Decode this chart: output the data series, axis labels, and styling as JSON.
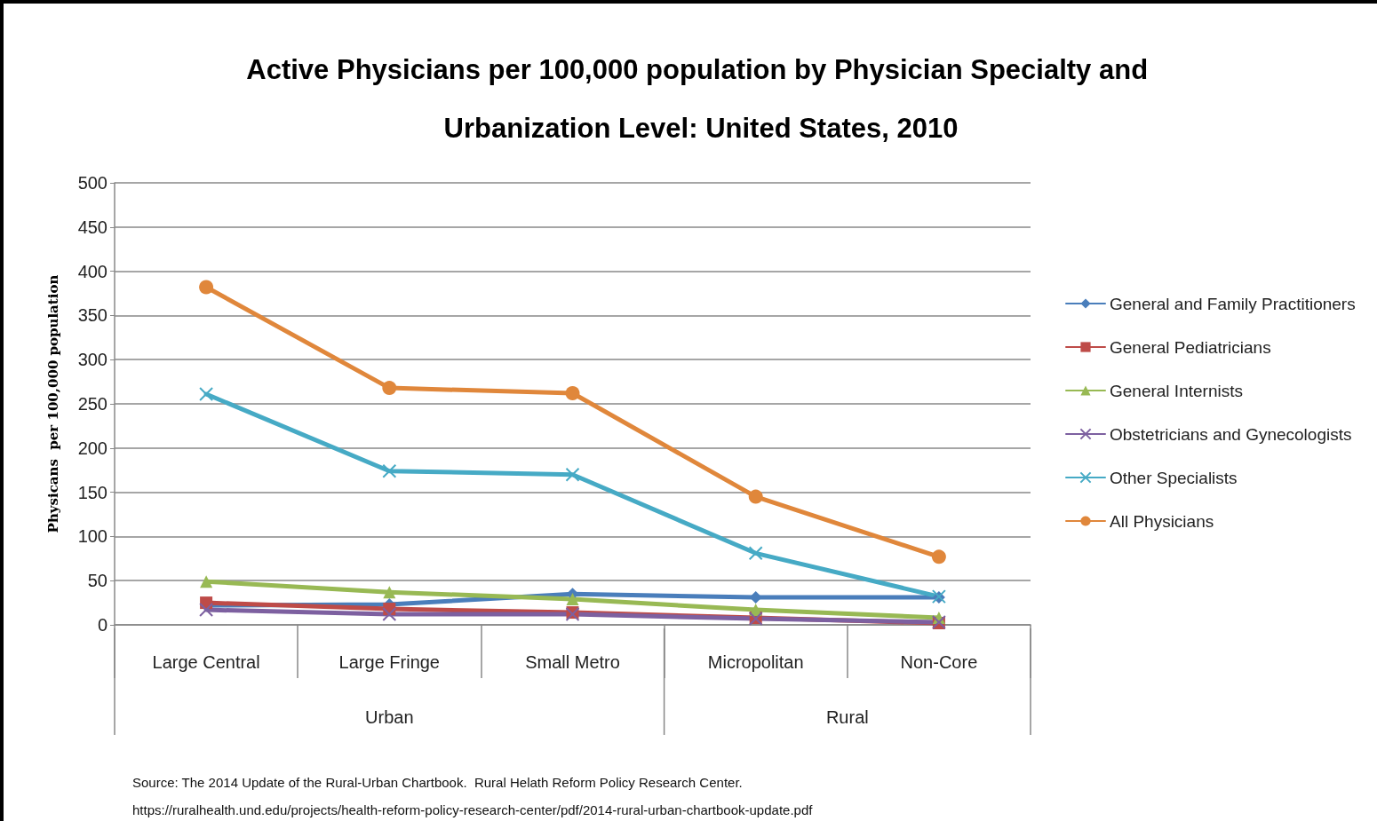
{
  "chart_data": {
    "type": "line",
    "title": "Active Physicians per 100,000 population by Physician Specialty and Urbanization Level: United States, 2010",
    "ylabel": "Physicans  per 100,000 population",
    "categories": [
      "Large Central",
      "Large Fringe",
      "Small Metro",
      "Micropolitan",
      "Non-Core"
    ],
    "series": [
      {
        "name": "General and Family Practitioners",
        "color": "#4a7ebb",
        "marker": "diamond",
        "values": [
          22,
          23,
          35,
          31,
          31
        ]
      },
      {
        "name": "General Pediatricians",
        "color": "#be4b48",
        "marker": "square",
        "values": [
          25,
          18,
          14,
          8,
          2
        ]
      },
      {
        "name": "General Internists",
        "color": "#98b954",
        "marker": "triangle",
        "values": [
          49,
          37,
          29,
          17,
          8
        ]
      },
      {
        "name": "Obstetricians and Gynecologists",
        "color": "#7d60a0",
        "marker": "cross",
        "values": [
          17,
          12,
          12,
          7,
          3
        ]
      },
      {
        "name": "Other Specialists",
        "color": "#46aac5",
        "marker": "cross",
        "values": [
          261,
          174,
          170,
          81,
          32
        ]
      },
      {
        "name": "All Physicians",
        "color": "#e0873b",
        "marker": "circle",
        "values": [
          382,
          268,
          262,
          145,
          77
        ]
      }
    ],
    "ylim": [
      0,
      500
    ],
    "yticks": [
      0,
      50,
      100,
      150,
      200,
      250,
      300,
      350,
      400,
      450,
      500
    ],
    "grid": "y",
    "legend": "right",
    "line_style": "solid",
    "annotations": [
      "Urban",
      "Rural",
      "Source: The 2014 Update of the Rural-Urban Chartbook.  Rural Helath Reform Policy Research Center.",
      "https://ruralhealth.und.edu/projects/health-reform-policy-research-center/pdf/2014-rural-urban-chartbook-update.pdf"
    ]
  }
}
